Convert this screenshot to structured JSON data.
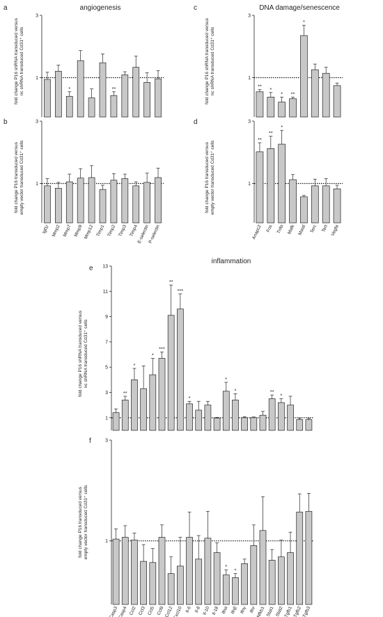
{
  "titles": {
    "angiogenesis": "angiogenesis",
    "dna": "DNA damage/senescence",
    "inflammation": "inflammation"
  },
  "ylabels": {
    "a_line1": "fold change P16 shRNA transduced versus",
    "a_line2": "nc shRNA transduced Cd31⁺ cells",
    "b_line1": "fold change P16 transduced versus",
    "b_line2": "empty vector transduced Cd31⁺ cells",
    "c_line1": "fold change P16 shRNA transduced versus",
    "c_line2": "nc shRNA transduced Cd31⁺ cells",
    "d_line1": "fold change P16 transduced versus",
    "d_line2": "empty vector transduced Cd31⁺ cells",
    "e_line1": "fold change P16 shRNA transduced versus",
    "e_line2": "nc shRNA transduced Cd31⁺ cells",
    "f_line1": "fold change P16 transduced versus",
    "f_line2": "empty vector transduced Cd31⁺ cells"
  },
  "chart_data": [
    {
      "id": "a",
      "letter": "a",
      "type": "bar",
      "scale": "log",
      "ylim": [
        0.5,
        3
      ],
      "yticks": [
        1,
        3
      ],
      "reference_line": 1,
      "categories": [
        "Igf1r",
        "Mmp2",
        "Mmp7",
        "Mmp9",
        "Mmp12",
        "Timp1",
        "Timp2",
        "Timp3",
        "Timp4",
        "E-selectin",
        "P-selectin"
      ],
      "values": [
        0.97,
        1.12,
        0.72,
        1.35,
        0.7,
        1.3,
        0.73,
        1.05,
        1.2,
        0.92,
        0.98
      ],
      "errors": [
        0.13,
        0.13,
        0.06,
        0.26,
        0.12,
        0.22,
        0.05,
        0.06,
        0.26,
        0.17,
        0.15
      ],
      "significance": [
        "",
        "",
        "*",
        "",
        "",
        "",
        "**",
        "",
        "",
        "",
        ""
      ]
    },
    {
      "id": "b",
      "letter": "b",
      "type": "bar",
      "scale": "log",
      "ylim": [
        0.5,
        3
      ],
      "yticks": [
        1,
        3
      ],
      "reference_line": 1,
      "categories": [
        "Igf1r",
        "Mmp2",
        "Mmp7",
        "Mmp9",
        "Mmp12",
        "Timp1",
        "Timp2",
        "Timp3",
        "Timp4",
        "E-selectin",
        "P-selectin"
      ],
      "values": [
        0.96,
        0.92,
        1.03,
        1.1,
        1.11,
        0.9,
        1.06,
        1.09,
        0.96,
        1.02,
        1.11
      ],
      "errors": [
        0.13,
        0.1,
        0.15,
        0.2,
        0.26,
        0.07,
        0.13,
        0.09,
        0.07,
        0.18,
        0.2
      ],
      "significance": [
        "",
        "",
        "",
        "",
        "",
        "",
        "",
        "",
        "",
        "",
        ""
      ]
    },
    {
      "id": "c",
      "letter": "c",
      "type": "bar",
      "scale": "log",
      "ylim": [
        0.5,
        3
      ],
      "yticks": [
        1,
        3
      ],
      "reference_line": 1,
      "categories": [
        "Anapc2",
        "Fos",
        "Tnfα",
        "Mafk",
        "Mastl",
        "Terc",
        "Tert",
        "Vegfa"
      ],
      "values": [
        0.78,
        0.71,
        0.65,
        0.69,
        2.1,
        1.15,
        1.08,
        0.87
      ],
      "errors": [
        0.03,
        0.06,
        0.06,
        0.02,
        0.42,
        0.12,
        0.12,
        0.04
      ],
      "significance": [
        "**",
        "*",
        "*",
        "**",
        "*",
        "",
        "",
        ""
      ]
    },
    {
      "id": "d",
      "letter": "d",
      "type": "bar",
      "scale": "log",
      "ylim": [
        0.5,
        3
      ],
      "yticks": [
        1,
        3
      ],
      "reference_line": 1,
      "categories": [
        "Anapc2",
        "Fos",
        "Tnfα",
        "Mafk",
        "Mastl",
        "Terc",
        "Tert",
        "Vegfa"
      ],
      "values": [
        1.75,
        1.85,
        2.0,
        1.07,
        0.79,
        0.96,
        0.96,
        0.91
      ],
      "errors": [
        0.3,
        0.45,
        0.55,
        0.1,
        0.02,
        0.12,
        0.13,
        0.06
      ],
      "significance": [
        "**",
        "**",
        "*",
        "",
        "",
        "",
        "",
        ""
      ]
    },
    {
      "id": "e",
      "letter": "e",
      "type": "bar",
      "scale": "linear",
      "ylim": [
        0,
        13
      ],
      "yticks": [
        1,
        3,
        5,
        7,
        9,
        11,
        13
      ],
      "reference_line": 1,
      "categories": [
        "Casp3",
        "Casp4",
        "Ccl2",
        "Ccl3",
        "Ccl5",
        "Ccl9",
        "Ccl12",
        "Cxcl10",
        "Il-6",
        "Il-8",
        "Il-10",
        "Il-18",
        "Ifnα",
        "Ifnβ",
        "Ifnγ",
        "Ifnr",
        "Nfkb1",
        "Stat1",
        "Stat2",
        "Tgfb1",
        "Tgfb2",
        "Tgfb3"
      ],
      "values": [
        1.4,
        2.4,
        4.0,
        3.3,
        4.4,
        5.7,
        9.1,
        9.6,
        2.1,
        1.6,
        2.0,
        0.98,
        3.1,
        2.4,
        1.0,
        1.0,
        1.2,
        2.5,
        2.2,
        2.0,
        0.85,
        0.85
      ],
      "errors": [
        0.3,
        0.3,
        0.9,
        1.8,
        1.3,
        0.5,
        2.4,
        1.2,
        0.2,
        0.7,
        0.3,
        0.05,
        0.7,
        0.5,
        0.08,
        0.06,
        0.3,
        0.3,
        0.3,
        0.7,
        0.1,
        0.1
      ],
      "significance": [
        "",
        "**",
        "*",
        "",
        "*",
        "***",
        "**",
        "***",
        "*",
        "",
        "",
        "",
        "*",
        "*",
        "",
        "",
        "",
        "**",
        "*",
        "",
        "",
        ""
      ]
    },
    {
      "id": "f",
      "letter": "f",
      "type": "bar",
      "scale": "log",
      "ylim": [
        0.5,
        3
      ],
      "yticks": [
        1,
        3
      ],
      "reference_line": 1,
      "categories": [
        "Casp3",
        "Casp4",
        "Ccl2",
        "Ccl3",
        "Ccl5",
        "Ccl9",
        "Ccl12",
        "Cxcl10",
        "Il-6",
        "Il-8",
        "Il-10",
        "Il-18",
        "Ifnα",
        "Ifnβ",
        "Ifnγ",
        "Ifnr",
        "Nfkb1",
        "Stat1",
        "Stat2",
        "Tgfb1",
        "Tgfb2",
        "Tgfb3"
      ],
      "values": [
        1.02,
        1.04,
        1.01,
        0.8,
        0.79,
        1.04,
        0.7,
        0.76,
        1.04,
        0.82,
        1.03,
        0.88,
        0.69,
        0.67,
        0.78,
        0.95,
        1.12,
        0.81,
        0.84,
        0.88,
        1.37,
        1.38
      ],
      "errors": [
        0.12,
        0.14,
        0.08,
        0.16,
        0.13,
        0.15,
        0.14,
        0.28,
        0.33,
        0.24,
        0.35,
        0.1,
        0.04,
        0.03,
        0.04,
        0.24,
        0.5,
        0.1,
        0.17,
        0.22,
        0.3,
        0.3
      ],
      "significance": [
        "",
        "",
        "",
        "",
        "",
        "",
        "",
        "",
        "",
        "",
        "",
        "",
        "*",
        "*",
        "",
        "",
        "",
        "",
        "",
        "",
        "",
        ""
      ]
    }
  ]
}
